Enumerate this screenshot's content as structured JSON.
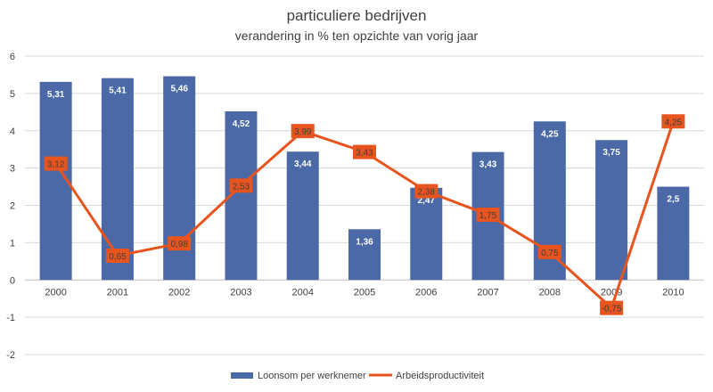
{
  "chart_data": {
    "type": "bar",
    "title": "particuliere bedrijven",
    "subtitle": "verandering in % ten opzichte van vorig jaar",
    "categories": [
      "2000",
      "2001",
      "2002",
      "2003",
      "2004",
      "2005",
      "2006",
      "2007",
      "2008",
      "2009",
      "2010"
    ],
    "ylim": [
      -2,
      6
    ],
    "yticks": [
      "-2",
      "-1",
      "0",
      "1",
      "2",
      "3",
      "4",
      "5",
      "6"
    ],
    "legend_position": "bottom",
    "grid": true,
    "series": [
      {
        "name": "Loonsom per werknemer",
        "type": "bar",
        "color": "#4a69a6",
        "values": [
          5.31,
          5.41,
          5.46,
          4.52,
          3.44,
          1.36,
          2.47,
          3.43,
          4.25,
          3.75,
          2.5
        ],
        "labels": [
          "5,31",
          "5,41",
          "5,46",
          "4,52",
          "3,44",
          "1,36",
          "2,47",
          "3,43",
          "4,25",
          "3,75",
          "2,5"
        ]
      },
      {
        "name": "Arbeidsproductiviteit",
        "type": "line",
        "color": "#e8541e",
        "values": [
          3.12,
          0.65,
          0.98,
          2.53,
          3.99,
          3.43,
          2.38,
          1.75,
          0.75,
          -0.75,
          4.25
        ],
        "labels": [
          "3,12",
          "0,65",
          "0,98",
          "2,53",
          "3,99",
          "3,43",
          "2,38",
          "1,75",
          "0,75",
          "-0,75",
          "4,25"
        ]
      }
    ]
  }
}
